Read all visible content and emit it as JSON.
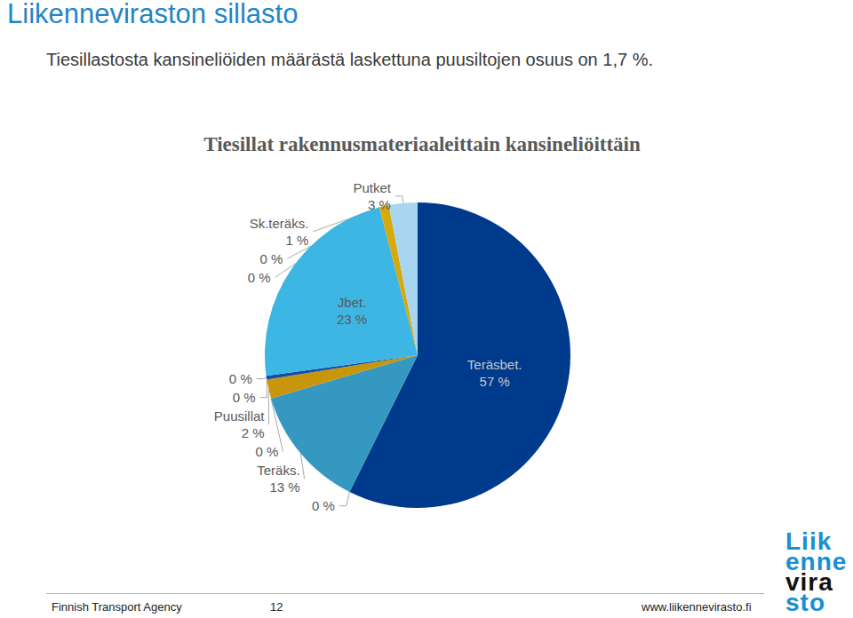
{
  "slide": {
    "title": "Liikenneviraston sillasto",
    "text": "Tiesillastosta kansineliöiden määrästä laskettuna puusiltojen osuus on 1,7 %.",
    "footer": "Finnish Transport Agency",
    "page": "12",
    "url": "www.liikennevirasto.fi",
    "logo": [
      "Liik",
      "enne",
      "vira",
      "sto"
    ]
  },
  "chart_data": {
    "type": "pie",
    "title": "Tiesillat rakennusmateriaaleittain kansineliöittäin",
    "categories": [
      "Teräsbet.",
      null,
      "Teräks.",
      null,
      "Puusillat",
      null,
      null,
      "Jbet.",
      null,
      "Sk.teräks.",
      null,
      "Putket"
    ],
    "values": [
      57,
      0,
      13,
      0,
      2,
      0,
      0.4,
      23,
      0,
      1,
      0,
      3
    ],
    "value_labels": [
      "57 %",
      "0 %",
      "13 %",
      "0 %",
      "2 %",
      "0 %",
      "0 %",
      "23 %",
      "0 %",
      "1 %",
      "0 %",
      "3 %"
    ],
    "colors": [
      "#003a8c",
      "#7f7f7f",
      "#3598c0",
      "#5a5a5a",
      "#c8960a",
      "#8a6d3b",
      "#0f4fa8",
      "#3db6e4",
      "#9e9e9e",
      "#d7a90a",
      "#6b6b6b",
      "#a8d5ef"
    ],
    "data_labels": true
  }
}
